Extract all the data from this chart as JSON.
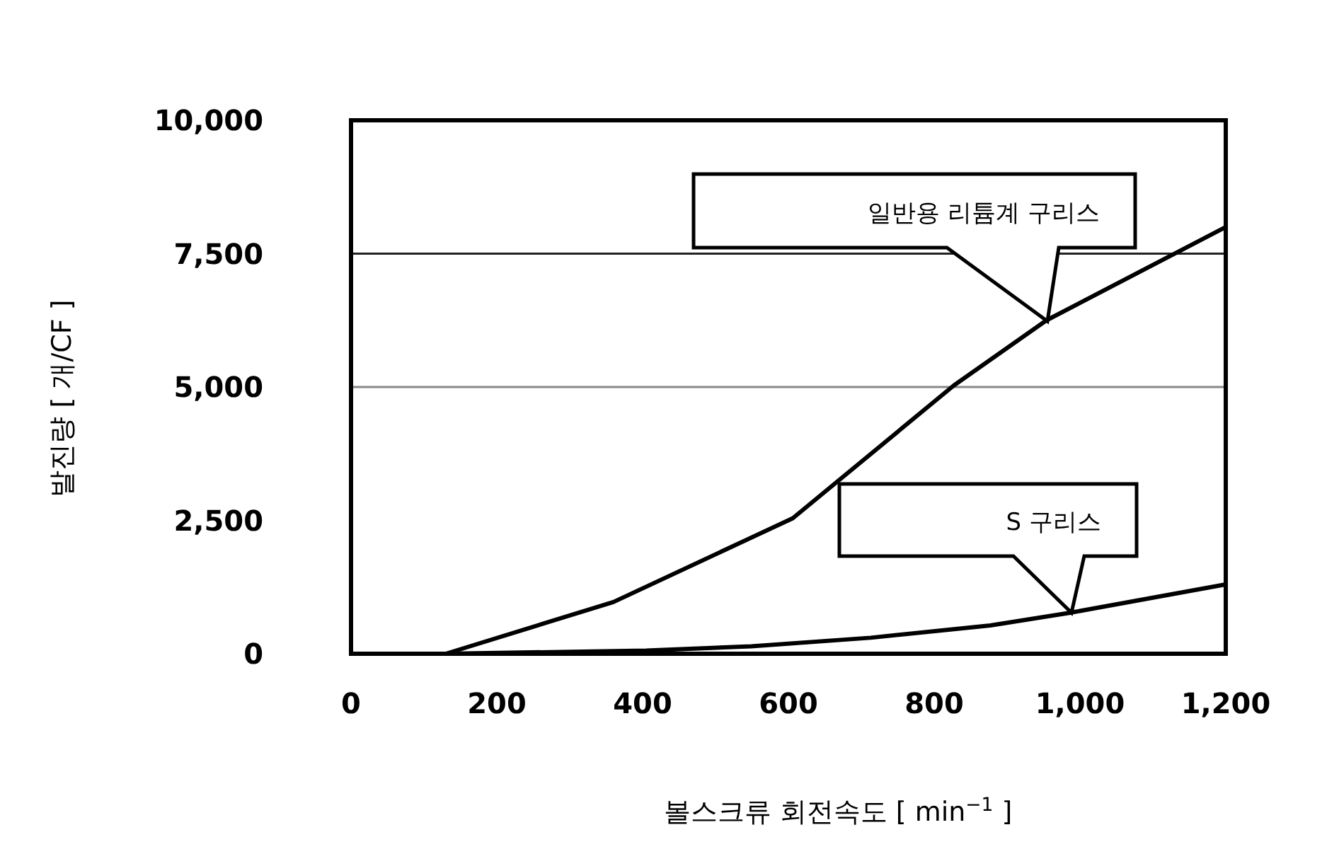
{
  "chart_data": {
    "type": "line",
    "ylabel": "발진량 [ 개/CF ]",
    "xlabel": "볼스크류 회전속도 [ min$^{−1}$ ]",
    "xlim": [
      0,
      1200
    ],
    "xticks": [
      {
        "value": 0,
        "label": "0"
      },
      {
        "value": 200,
        "label": "200"
      },
      {
        "value": 400,
        "label": "400"
      },
      {
        "value": 600,
        "label": "600"
      },
      {
        "value": 800,
        "label": "800"
      },
      {
        "value": 1000,
        "label": "1,000"
      },
      {
        "value": 1200,
        "label": "1,200"
      }
    ],
    "ylim": [
      0,
      10000
    ],
    "yticks": [
      {
        "value": 0,
        "label": "0"
      },
      {
        "value": 2500,
        "label": "2,500"
      },
      {
        "value": 5000,
        "label": "5,000"
      },
      {
        "value": 7500,
        "label": "7,500"
      },
      {
        "value": 10000,
        "label": "10,000"
      }
    ],
    "ref_lines": [
      {
        "axis": "y",
        "value": 7500,
        "color": "#222222"
      },
      {
        "axis": "y",
        "value": 5000,
        "color": "#888888"
      }
    ],
    "series": [
      {
        "color": "#000000",
        "x": [
          130,
          360,
          606,
          827,
          954,
          1200
        ],
        "values": [
          0,
          970,
          2540,
          5030,
          6250,
          8000
        ]
      },
      {
        "color": "#000000",
        "x": [
          130,
          405,
          549,
          713,
          877,
          987,
          1200
        ],
        "values": [
          0,
          60,
          140,
          300,
          530,
          770,
          1300
        ]
      }
    ],
    "annotations": [
      "일반용 리튬계 구리스",
      "S 구리스"
    ]
  }
}
